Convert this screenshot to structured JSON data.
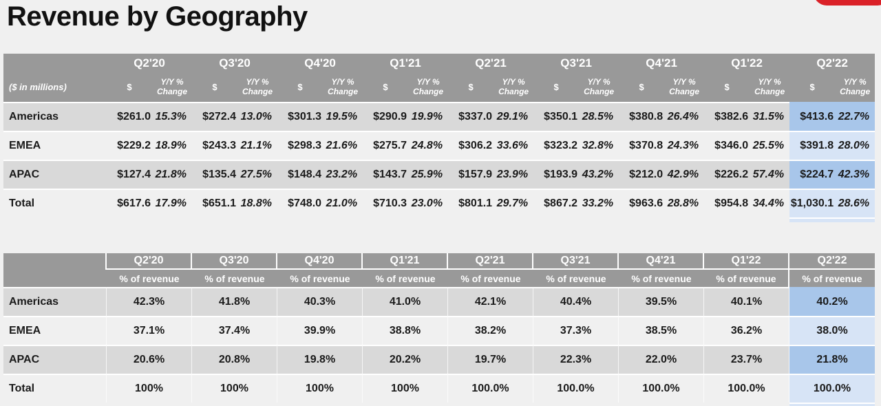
{
  "page": {
    "title": "Revenue by Geography",
    "background": "#f0f0f0"
  },
  "logo": {
    "color": "#da2128"
  },
  "colors": {
    "header_bg": "#999999",
    "header_text": "#ffffff",
    "row_gray": "#d9d9d9",
    "row_light": "#f0f0f0",
    "highlight_on_gray_row": "#a8c6ea",
    "highlight_on_light_row": "#d7e4f6",
    "body_text": "#1a1a1a"
  },
  "quarters": [
    "Q2'20",
    "Q3'20",
    "Q4'20",
    "Q1'21",
    "Q2'21",
    "Q3'21",
    "Q4'21",
    "Q1'22",
    "Q2'22"
  ],
  "highlight_quarter": "Q2'22",
  "revenue_table": {
    "units_label": "($ in millions)",
    "dollar_header": "$",
    "yoy_header": "Y/Y % Change",
    "rows": [
      {
        "label": "Americas",
        "values": [
          "$261.0",
          "15.3%",
          "$272.4",
          "13.0%",
          "$301.3",
          "19.5%",
          "$290.9",
          "19.9%",
          "$337.0",
          "29.1%",
          "$350.1",
          "28.5%",
          "$380.8",
          "26.4%",
          "$382.6",
          "31.5%",
          "$413.6",
          "22.7%"
        ]
      },
      {
        "label": "EMEA",
        "values": [
          "$229.2",
          "18.9%",
          "$243.3",
          "21.1%",
          "$298.3",
          "21.6%",
          "$275.7",
          "24.8%",
          "$306.2",
          "33.6%",
          "$323.2",
          "32.8%",
          "$370.8",
          "24.3%",
          "$346.0",
          "25.5%",
          "$391.8",
          "28.0%"
        ]
      },
      {
        "label": "APAC",
        "values": [
          "$127.4",
          "21.8%",
          "$135.4",
          "27.5%",
          "$148.4",
          "23.2%",
          "$143.7",
          "25.9%",
          "$157.9",
          "23.9%",
          "$193.9",
          "43.2%",
          "$212.0",
          "42.9%",
          "$226.2",
          "57.4%",
          "$224.7",
          "42.3%"
        ]
      },
      {
        "label": "Total",
        "values": [
          "$617.6",
          "17.9%",
          "$651.1",
          "18.8%",
          "$748.0",
          "21.0%",
          "$710.3",
          "23.0%",
          "$801.1",
          "29.7%",
          "$867.2",
          "33.2%",
          "$963.6",
          "28.8%",
          "$954.8",
          "34.4%",
          "$1,030.1",
          "28.6%"
        ]
      }
    ]
  },
  "pct_table": {
    "subheader": "% of revenue",
    "rows": [
      {
        "label": "Americas",
        "values": [
          "42.3%",
          "41.8%",
          "40.3%",
          "41.0%",
          "42.1%",
          "40.4%",
          "39.5%",
          "40.1%",
          "40.2%"
        ]
      },
      {
        "label": "EMEA",
        "values": [
          "37.1%",
          "37.4%",
          "39.9%",
          "38.8%",
          "38.2%",
          "37.3%",
          "38.5%",
          "36.2%",
          "38.0%"
        ]
      },
      {
        "label": "APAC",
        "values": [
          "20.6%",
          "20.8%",
          "19.8%",
          "20.2%",
          "19.7%",
          "22.3%",
          "22.0%",
          "23.7%",
          "21.8%"
        ]
      },
      {
        "label": "Total",
        "values": [
          "100%",
          "100%",
          "100%",
          "100%",
          "100.0%",
          "100.0%",
          "100.0%",
          "100.0%",
          "100.0%"
        ]
      }
    ]
  }
}
